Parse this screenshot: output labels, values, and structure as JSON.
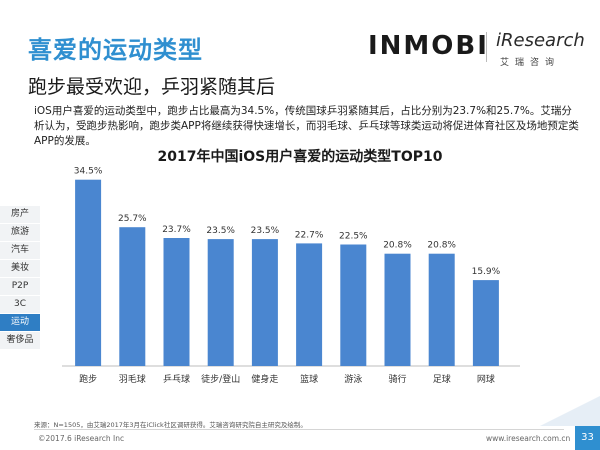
{
  "header": {
    "title": "喜爱的运动类型",
    "subtitle": "跑步最受欢迎，乒羽紧随其后",
    "description": "iOS用户喜爱的运动类型中，跑步占比最高为34.5%，传统国球乒羽紧随其后，占比分别为23.7%和25.7%。艾瑞分析认为，受跑步热影响，跑步类APP将继续获得快速增长，而羽毛球、乒乓球等球类运动将促进体育社区及场地预定类APP的发展。"
  },
  "brand": {
    "inmobi": "INMOBI",
    "iresearch": "iResearch",
    "iresearch_cn": "艾瑞咨询"
  },
  "sidebar": {
    "items": [
      {
        "label": "房产",
        "active": false
      },
      {
        "label": "旅游",
        "active": false
      },
      {
        "label": "汽车",
        "active": false
      },
      {
        "label": "美妆",
        "active": false
      },
      {
        "label": "P2P",
        "active": false
      },
      {
        "label": "3C",
        "active": false
      },
      {
        "label": "运动",
        "active": true
      },
      {
        "label": "奢侈品",
        "active": false
      }
    ]
  },
  "colors": {
    "bar": "#4a86d0",
    "accent": "#2f8fd0",
    "active_tab": "#2f7ec4"
  },
  "chart_data": {
    "type": "bar",
    "title": "2017年中国iOS用户喜爱的运动类型TOP10",
    "categories": [
      "跑步",
      "羽毛球",
      "乒乓球",
      "徒步/登山",
      "健身走",
      "篮球",
      "游泳",
      "骑行",
      "足球",
      "网球"
    ],
    "values": [
      34.5,
      25.7,
      23.7,
      23.5,
      23.5,
      22.7,
      22.5,
      20.8,
      20.8,
      15.9
    ],
    "value_labels": [
      "34.5%",
      "25.7%",
      "23.7%",
      "23.5%",
      "23.5%",
      "22.7%",
      "22.5%",
      "20.8%",
      "20.8%",
      "15.9%"
    ],
    "xlabel": "",
    "ylabel": "",
    "ylim": [
      0,
      40
    ],
    "grid": false
  },
  "footer": {
    "source": "来源：N=1505，由艾瑞2017年3月在iClick社区调研获得。艾瑞咨询研究院自主研究及绘制。",
    "copyright": "©2017.6 iResearch Inc",
    "url": "www.iresearch.com.cn",
    "page": "33"
  }
}
